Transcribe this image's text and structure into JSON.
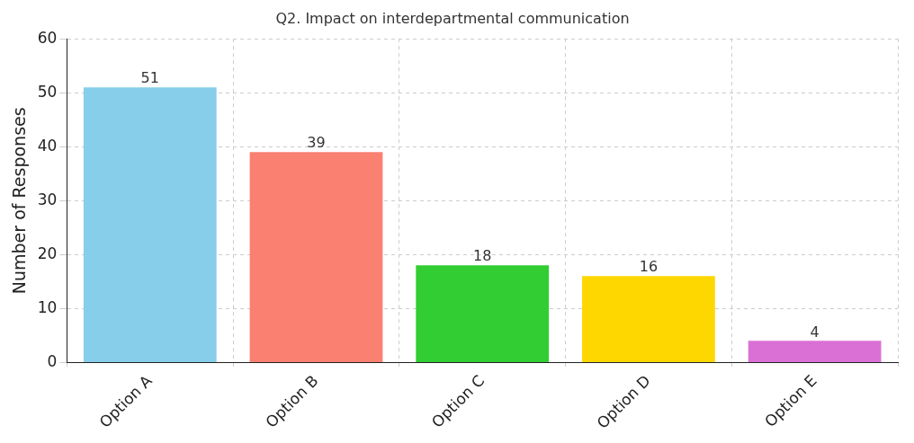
{
  "chart_data": {
    "type": "bar",
    "title": "Q2. Impact on interdepartmental communication",
    "ylabel": "Number of Responses",
    "categories": [
      "Option A",
      "Option B",
      "Option C",
      "Option D",
      "Option E"
    ],
    "values": [
      51,
      39,
      18,
      16,
      4
    ],
    "colors": [
      "#87ceeb",
      "#fa8072",
      "#32cd32",
      "#ffd700",
      "#da70d6"
    ],
    "ylim": [
      0,
      60
    ],
    "yticks": [
      0,
      10,
      20,
      30,
      40,
      50,
      60
    ],
    "grid": true,
    "data_labels": true
  }
}
